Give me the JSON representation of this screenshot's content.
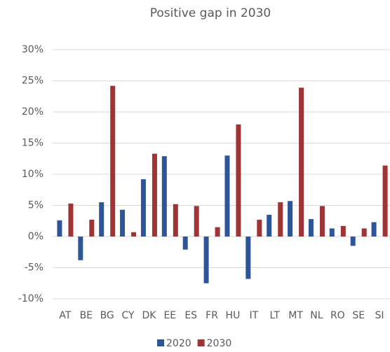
{
  "chart_data": {
    "type": "bar",
    "title": "Positive gap in 2030",
    "categories": [
      "AT",
      "BE",
      "BG",
      "CY",
      "DK",
      "EE",
      "ES",
      "FR",
      "HU",
      "IT",
      "LT",
      "MT",
      "NL",
      "RO",
      "SE",
      "SI"
    ],
    "series": [
      {
        "name": "2020",
        "color": "#2e5597",
        "values": [
          2.6,
          -3.8,
          5.5,
          4.3,
          9.2,
          12.9,
          -2.1,
          -7.5,
          13.0,
          -6.8,
          3.5,
          5.7,
          2.8,
          1.3,
          -1.5,
          2.3
        ]
      },
      {
        "name": "2030",
        "color": "#9e3434",
        "values": [
          5.3,
          2.7,
          24.2,
          0.7,
          13.3,
          5.2,
          4.9,
          1.5,
          18.0,
          2.7,
          5.5,
          23.9,
          4.9,
          1.7,
          1.3,
          11.4
        ]
      }
    ],
    "ylim": [
      -10,
      30
    ],
    "yticks": [
      {
        "value": -10,
        "label": "-10%"
      },
      {
        "value": -5,
        "label": "-5%"
      },
      {
        "value": 0,
        "label": "0%"
      },
      {
        "value": 5,
        "label": "5%"
      },
      {
        "value": 10,
        "label": "10%"
      },
      {
        "value": 15,
        "label": "15%"
      },
      {
        "value": 20,
        "label": "20%"
      },
      {
        "value": 25,
        "label": "25%"
      },
      {
        "value": 30,
        "label": "30%"
      }
    ],
    "grid": true,
    "legend": "bottom"
  }
}
